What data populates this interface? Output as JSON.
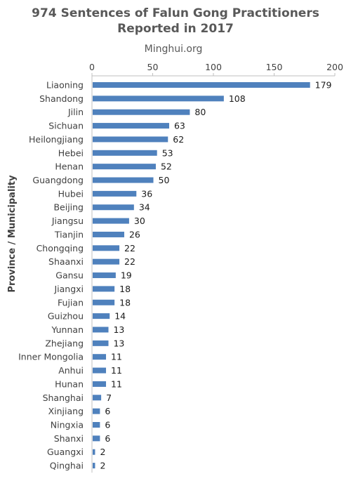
{
  "chart_data": {
    "type": "bar",
    "orientation": "horizontal",
    "title": "974 Sentences of Falun Gong Practitioners\nReported in 2017",
    "subtitle": "Minghui.org",
    "xlabel": "",
    "ylabel": "Province / Municipality",
    "xlim": [
      0,
      200
    ],
    "xticks": [
      0,
      50,
      100,
      150,
      200
    ],
    "axis_position": "top",
    "grid": false,
    "bar_color": "#4f81bd",
    "categories": [
      "Liaoning",
      "Shandong",
      "Jilin",
      "Sichuan",
      "Heilongjiang",
      "Hebei",
      "Henan",
      "Guangdong",
      "Hubei",
      "Beijing",
      "Jiangsu",
      "Tianjin",
      "Chongqing",
      "Shaanxi",
      "Gansu",
      "Jiangxi",
      "Fujian",
      "Guizhou",
      "Yunnan",
      "Zhejiang",
      "Inner Mongolia",
      "Anhui",
      "Hunan",
      "Shanghai",
      "Xinjiang",
      "Ningxia",
      "Shanxi",
      "Guangxi",
      "Qinghai"
    ],
    "values": [
      179,
      108,
      80,
      63,
      62,
      53,
      52,
      50,
      36,
      34,
      30,
      26,
      22,
      22,
      19,
      18,
      18,
      14,
      13,
      13,
      11,
      11,
      11,
      7,
      6,
      6,
      6,
      2,
      2
    ]
  }
}
